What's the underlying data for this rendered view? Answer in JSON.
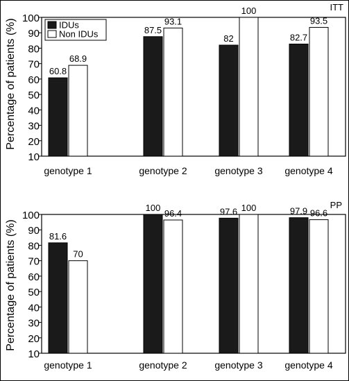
{
  "chart_data": [
    {
      "type": "bar",
      "label": "ITT",
      "ylabel": "Percentage of patients (%)",
      "xlabel": "",
      "ylim": [
        10,
        100
      ],
      "yticks": [
        10,
        20,
        30,
        40,
        50,
        60,
        70,
        80,
        90,
        100
      ],
      "categories": [
        "genotype 1",
        "genotype 2",
        "genotype 3",
        "genotype 4"
      ],
      "series": [
        {
          "name": "IDUs",
          "color": "#1a1a1a",
          "values": [
            60.8,
            87.5,
            82,
            82.7
          ],
          "labels": [
            "60.8",
            "87.5",
            "82",
            "82.7"
          ]
        },
        {
          "name": "Non IDUs",
          "color": "#ffffff",
          "values": [
            68.9,
            93.1,
            100,
            93.5
          ],
          "labels": [
            "68.9",
            "93.1",
            "100",
            "93.5"
          ]
        }
      ],
      "legend": "top-left",
      "grid": false
    },
    {
      "type": "bar",
      "label": "PP",
      "ylabel": "Percentage of patients (%)",
      "xlabel": "",
      "ylim": [
        10,
        100
      ],
      "yticks": [
        10,
        20,
        30,
        40,
        50,
        60,
        70,
        80,
        90,
        100
      ],
      "categories": [
        "genotype 1",
        "genotype 2",
        "genotype 3",
        "genotype 4"
      ],
      "series": [
        {
          "name": "IDUs",
          "color": "#1a1a1a",
          "values": [
            81.6,
            100,
            97.6,
            97.9
          ],
          "labels": [
            "81.6",
            "100",
            "97.6",
            "97.9"
          ]
        },
        {
          "name": "Non IDUs",
          "color": "#ffffff",
          "values": [
            70,
            96.4,
            100,
            96.6
          ],
          "labels": [
            "70",
            "96.4",
            "100",
            "96.6"
          ]
        }
      ],
      "grid": false
    }
  ]
}
